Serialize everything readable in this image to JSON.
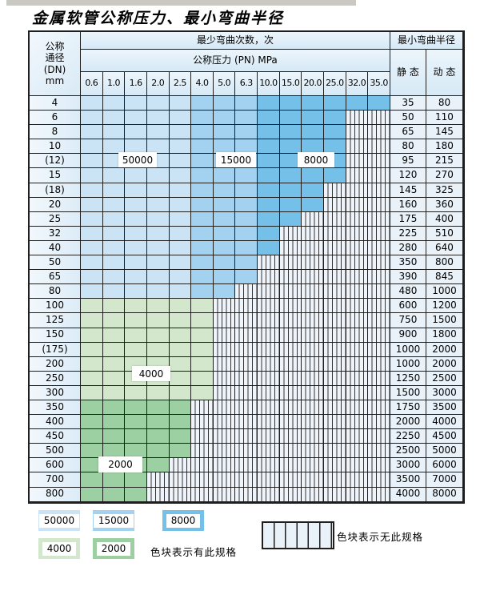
{
  "title": "金属软管公称压力、最小弯曲半径",
  "table": {
    "corner": [
      "公称",
      "通径",
      "(DN)",
      "mm"
    ],
    "bend_times_header": "最少弯曲次数，次",
    "pressure_unit_header": "公称压力 (PN) MPa",
    "radius_header": "最小弯曲半径",
    "static_header": "静 态",
    "dynamic_header": "动 态",
    "pressure_columns": [
      "0.6",
      "1.0",
      "1.6",
      "2.0",
      "2.5",
      "4.0",
      "5.0",
      "6.3",
      "10.0",
      "15.0",
      "20.0",
      "25.0",
      "32.0",
      "35.0"
    ],
    "rows": [
      {
        "dn": "4",
        "group": "blue",
        "last_spec_col": 13,
        "static": "35",
        "dynamic": "80"
      },
      {
        "dn": "6",
        "group": "blue",
        "last_spec_col": 11,
        "static": "50",
        "dynamic": "110"
      },
      {
        "dn": "8",
        "group": "blue",
        "last_spec_col": 11,
        "static": "65",
        "dynamic": "145"
      },
      {
        "dn": "10",
        "group": "blue",
        "last_spec_col": 11,
        "static": "80",
        "dynamic": "180"
      },
      {
        "dn": "(12)",
        "group": "blue",
        "last_spec_col": 11,
        "static": "95",
        "dynamic": "215"
      },
      {
        "dn": "15",
        "group": "blue",
        "last_spec_col": 11,
        "static": "120",
        "dynamic": "270"
      },
      {
        "dn": "(18)",
        "group": "blue",
        "last_spec_col": 10,
        "static": "145",
        "dynamic": "325"
      },
      {
        "dn": "20",
        "group": "blue",
        "last_spec_col": 10,
        "static": "160",
        "dynamic": "360"
      },
      {
        "dn": "25",
        "group": "blue",
        "last_spec_col": 9,
        "static": "175",
        "dynamic": "400"
      },
      {
        "dn": "32",
        "group": "blue",
        "last_spec_col": 8,
        "static": "225",
        "dynamic": "510"
      },
      {
        "dn": "40",
        "group": "blue",
        "last_spec_col": 8,
        "static": "280",
        "dynamic": "640"
      },
      {
        "dn": "50",
        "group": "blue",
        "last_spec_col": 7,
        "static": "350",
        "dynamic": "800"
      },
      {
        "dn": "65",
        "group": "blue",
        "last_spec_col": 7,
        "static": "390",
        "dynamic": "845"
      },
      {
        "dn": "80",
        "group": "blue",
        "last_spec_col": 6,
        "static": "480",
        "dynamic": "1000"
      },
      {
        "dn": "100",
        "group": "green_light",
        "last_spec_col": 5,
        "static": "600",
        "dynamic": "1200"
      },
      {
        "dn": "125",
        "group": "green_light",
        "last_spec_col": 5,
        "static": "750",
        "dynamic": "1500"
      },
      {
        "dn": "150",
        "group": "green_light",
        "last_spec_col": 5,
        "static": "900",
        "dynamic": "1800"
      },
      {
        "dn": "(175)",
        "group": "green_light",
        "last_spec_col": 5,
        "static": "1000",
        "dynamic": "2000"
      },
      {
        "dn": "200",
        "group": "green_light",
        "last_spec_col": 5,
        "static": "1000",
        "dynamic": "2000"
      },
      {
        "dn": "250",
        "group": "green_light",
        "last_spec_col": 5,
        "static": "1250",
        "dynamic": "2500"
      },
      {
        "dn": "300",
        "group": "green_light",
        "last_spec_col": 5,
        "static": "1500",
        "dynamic": "3000"
      },
      {
        "dn": "350",
        "group": "green_dark",
        "last_spec_col": 4,
        "static": "1750",
        "dynamic": "3500"
      },
      {
        "dn": "400",
        "group": "green_dark",
        "last_spec_col": 4,
        "static": "2000",
        "dynamic": "4000"
      },
      {
        "dn": "450",
        "group": "green_dark",
        "last_spec_col": 4,
        "static": "2250",
        "dynamic": "4500"
      },
      {
        "dn": "500",
        "group": "green_dark",
        "last_spec_col": 4,
        "static": "2500",
        "dynamic": "5000"
      },
      {
        "dn": "600",
        "group": "green_dark",
        "last_spec_col": 3,
        "static": "3000",
        "dynamic": "6000"
      },
      {
        "dn": "700",
        "group": "green_dark",
        "last_spec_col": 2,
        "static": "3500",
        "dynamic": "7000"
      },
      {
        "dn": "800",
        "group": "green_dark",
        "last_spec_col": 2,
        "static": "4000",
        "dynamic": "8000"
      }
    ]
  },
  "overlays": [
    "50000",
    "15000",
    "8000",
    "4000",
    "2000"
  ],
  "legend": {
    "swatches": [
      {
        "label": "50000",
        "color_key": "blue_50000"
      },
      {
        "label": "15000",
        "color_key": "blue_15000"
      },
      {
        "label": "8000",
        "color_key": "blue_8000"
      },
      {
        "label": "4000",
        "color_key": "green_4000"
      },
      {
        "label": "2000",
        "color_key": "green_2000"
      }
    ],
    "available_note": "色块表示有此规格",
    "unavailable_note": "色块表示无此规格"
  },
  "colors": {
    "blue_50000": "#cbe4f5",
    "blue_15000": "#a2d2ef",
    "blue_8000": "#74c0e8",
    "green_4000": "#d2e7cc",
    "green_2000": "#9ccfa1"
  }
}
